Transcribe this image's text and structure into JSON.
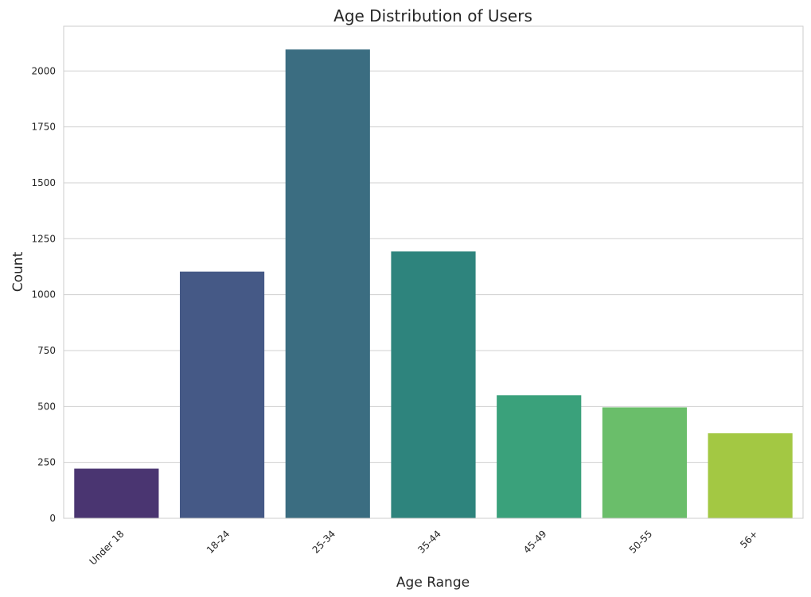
{
  "chart_data": {
    "type": "bar",
    "title": "Age Distribution of Users",
    "xlabel": "Age Range",
    "ylabel": "Count",
    "categories": [
      "Under 18",
      "18-24",
      "25-34",
      "35-44",
      "45-49",
      "50-55",
      "56+"
    ],
    "values": [
      222,
      1103,
      2096,
      1193,
      550,
      496,
      380
    ],
    "colors": [
      "#4a3571",
      "#455986",
      "#3b6d81",
      "#2e847d",
      "#3aa17b",
      "#6abe6a",
      "#a3c843"
    ],
    "ylim": [
      0,
      2200
    ],
    "yticks": [
      0,
      250,
      500,
      750,
      1000,
      1250,
      1500,
      1750,
      2000
    ],
    "xtick_rotation": 45,
    "grid": "y",
    "background": "#ffffff",
    "grid_color": "#d0d0d0"
  }
}
